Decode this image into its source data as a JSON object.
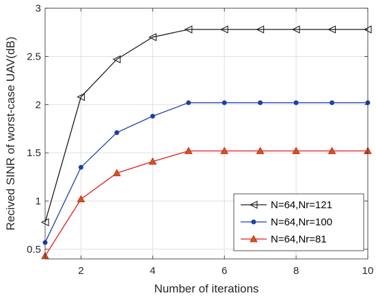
{
  "chart_data": {
    "type": "line",
    "title": "",
    "xlabel": "Number of iterations",
    "ylabel": "Recived SINR of worst-case UAV(dB)",
    "xlim": [
      1,
      10
    ],
    "ylim": [
      0.4,
      3
    ],
    "xticks": [
      2,
      4,
      6,
      8,
      10
    ],
    "yticks": [
      0.5,
      1,
      1.5,
      2,
      2.5,
      3
    ],
    "ytick_labels": [
      "0.5",
      "1",
      "1.5",
      "2",
      "2.5",
      "3"
    ],
    "grid": true,
    "legend_position": "bottom-right",
    "x": [
      1,
      2,
      3,
      4,
      5,
      6,
      7,
      8,
      9,
      10
    ],
    "series": [
      {
        "name": "N=64,Nr=121",
        "marker": "triangle-left",
        "color": "#1a1a1a",
        "values": [
          0.78,
          2.08,
          2.47,
          2.7,
          2.78,
          2.78,
          2.78,
          2.78,
          2.78,
          2.78
        ]
      },
      {
        "name": "N=64,Nr=100",
        "marker": "circle",
        "color": "#1f3fa8",
        "values": [
          0.57,
          1.35,
          1.71,
          1.88,
          2.02,
          2.02,
          2.02,
          2.02,
          2.02,
          2.02
        ]
      },
      {
        "name": "N=64,Nr=81",
        "marker": "triangle-up",
        "color": "#e31a1c",
        "marker_face": "#b5651d",
        "values": [
          0.43,
          1.02,
          1.29,
          1.41,
          1.52,
          1.52,
          1.52,
          1.52,
          1.52,
          1.52
        ]
      }
    ]
  }
}
